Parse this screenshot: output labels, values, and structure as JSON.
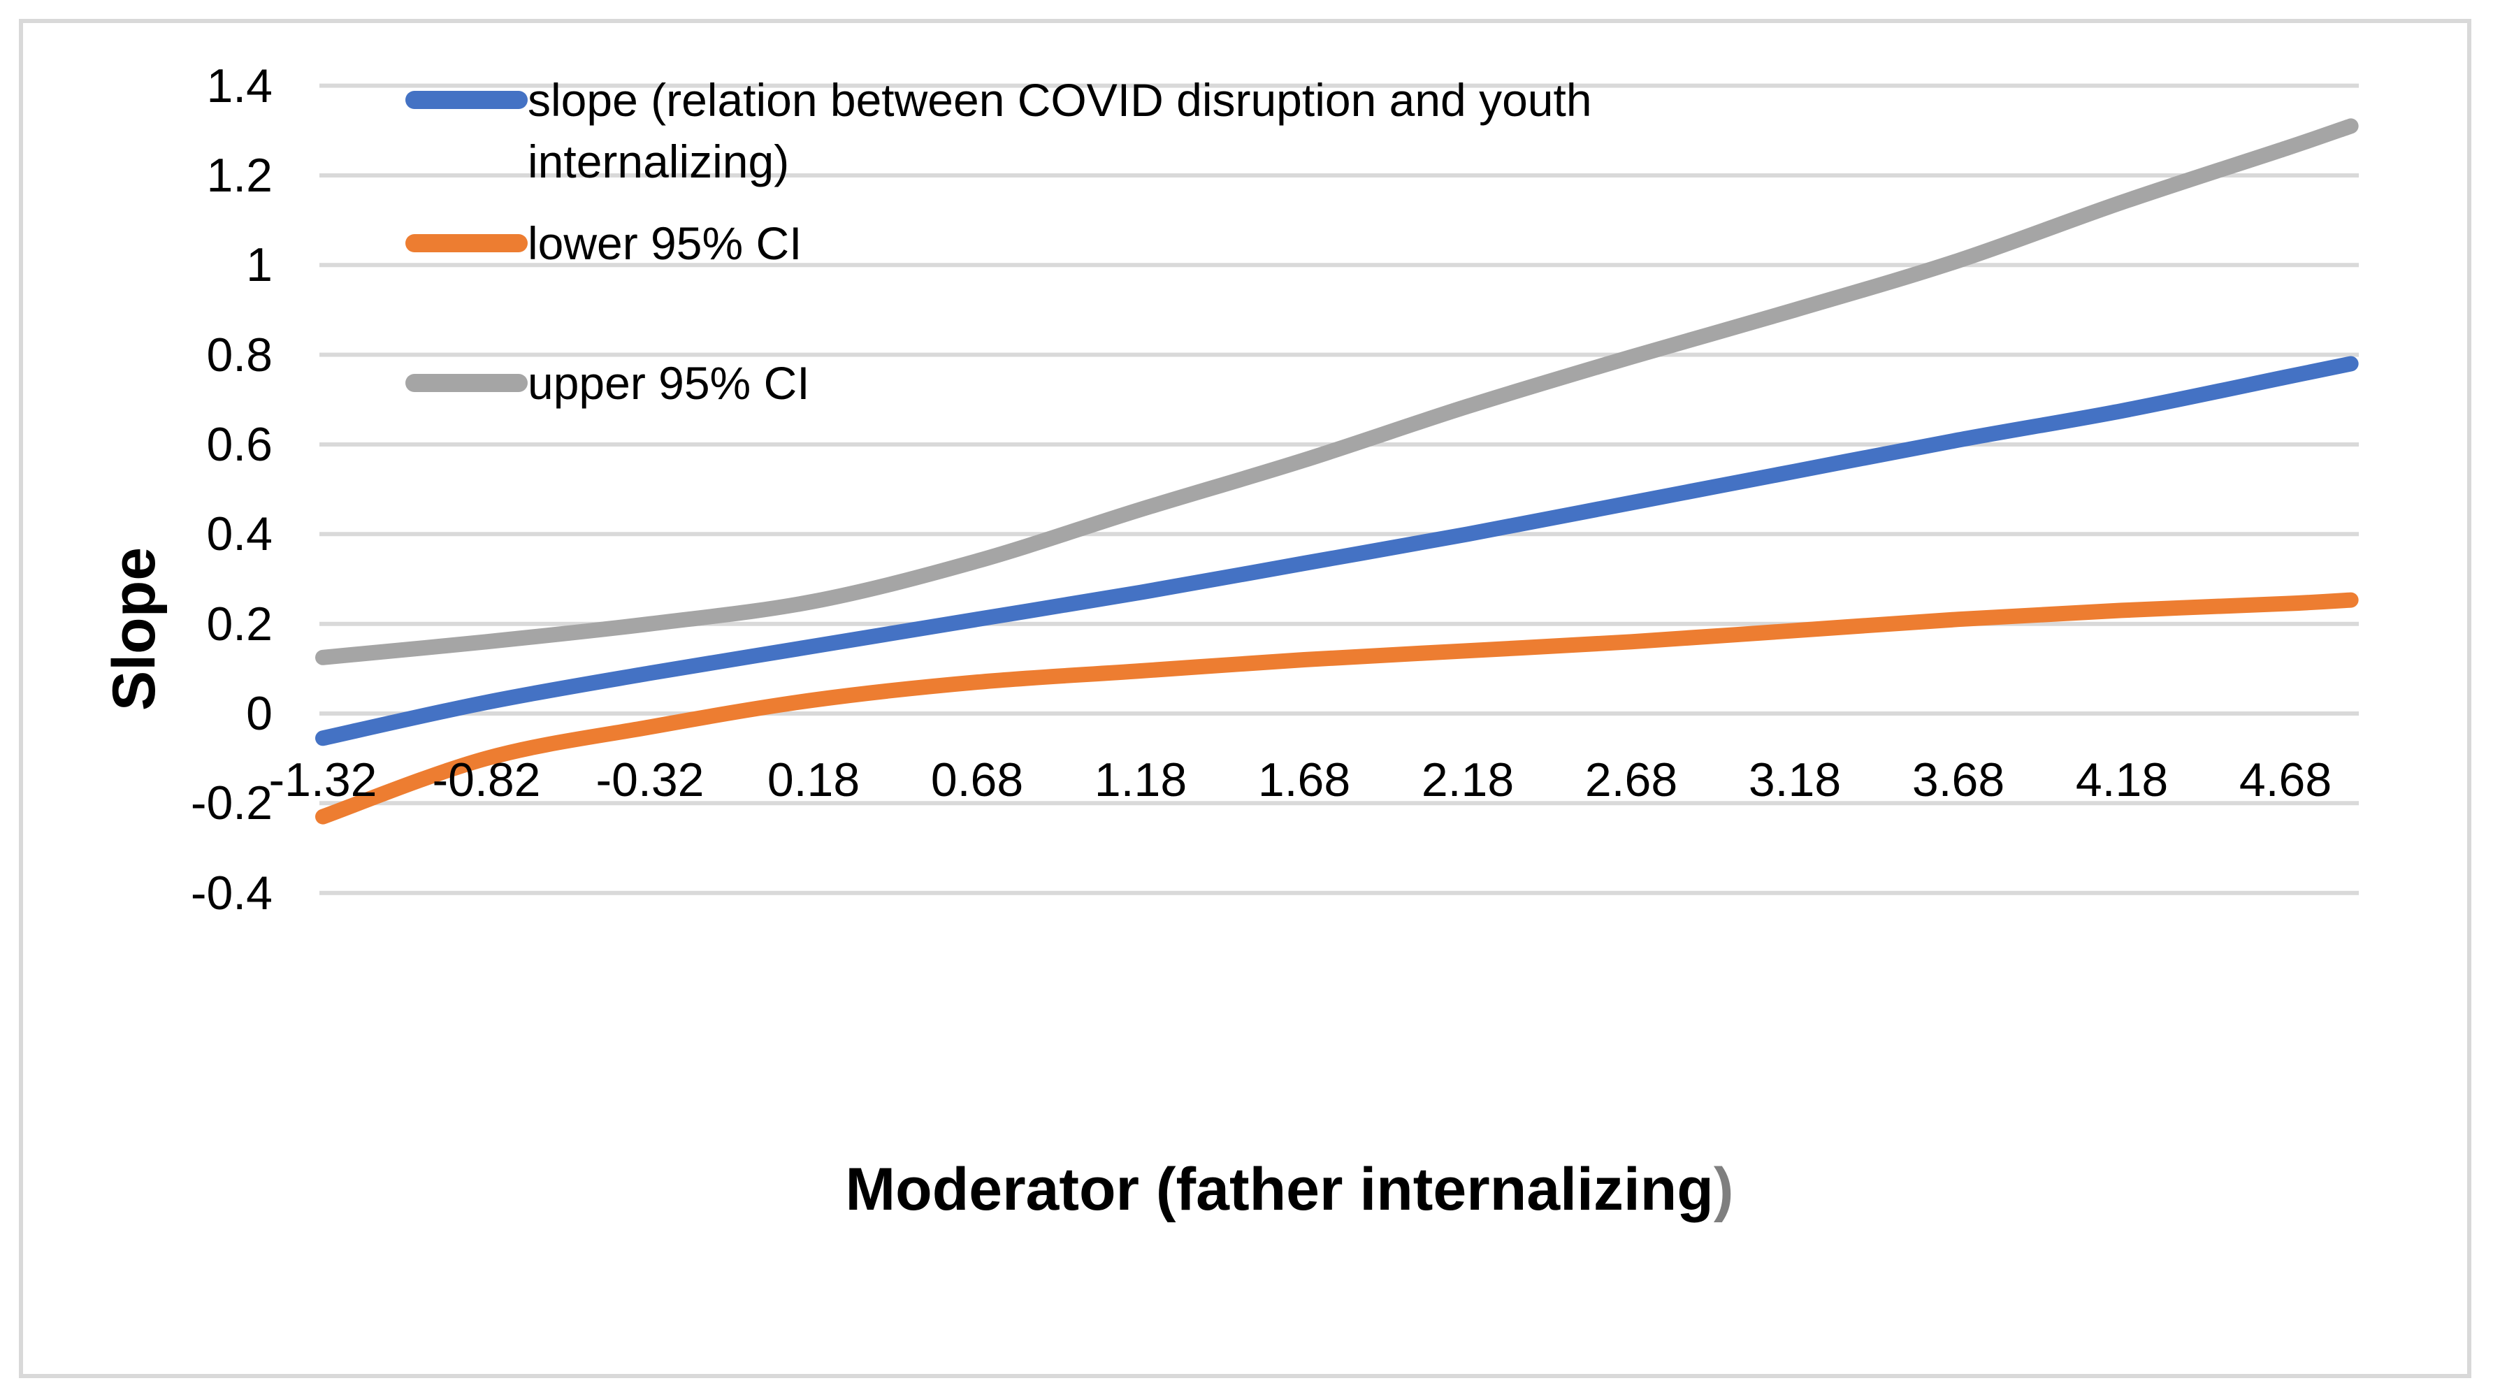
{
  "colors": {
    "series_slope": "#4472C4",
    "series_lower": "#ED7D31",
    "series_upper": "#A5A5A5",
    "gridline": "#D9D9D9",
    "chart_border": "#D9D9D9",
    "text": "#000000",
    "xlabel_paren": "#7f7f7f"
  },
  "chart_data": {
    "type": "line",
    "title": "",
    "ylabel": "Slope",
    "xlabel_main": "Moderator (father internalizing",
    "xlabel_suffix": ")",
    "legend_position": "top-left-overlay",
    "grid": "horizontal",
    "ylim": [
      -0.4,
      1.4
    ],
    "y_ticks": [
      1.4,
      1.2,
      1,
      0.8,
      0.6,
      0.4,
      0.2,
      0,
      -0.2,
      -0.4
    ],
    "y_tick_labels": [
      "1.4",
      "1.2",
      "1",
      "0.8",
      "0.6",
      "0.4",
      "0.2",
      "0",
      "-0.2",
      "-0.4"
    ],
    "x": [
      -1.32,
      -0.82,
      -0.32,
      0.18,
      0.68,
      1.18,
      1.68,
      2.18,
      2.68,
      3.18,
      3.68,
      4.18,
      4.68,
      4.88
    ],
    "x_tick_labels": [
      "-1.32",
      "-0.82",
      "-0.32",
      "0.18",
      "0.68",
      "1.18",
      "1.68",
      "2.18",
      "2.68",
      "3.18",
      "3.68",
      "4.18",
      "4.68"
    ],
    "series": [
      {
        "name": "slope (relation between COVID disruption and youth internalizing)",
        "color": "#4472C4",
        "values": [
          -0.055,
          0.025,
          0.09,
          0.15,
          0.21,
          0.27,
          0.335,
          0.4,
          0.47,
          0.54,
          0.61,
          0.675,
          0.75,
          0.78
        ]
      },
      {
        "name": "lower 95% CI",
        "color": "#ED7D31",
        "values": [
          -0.23,
          -0.1,
          -0.03,
          0.03,
          0.07,
          0.095,
          0.12,
          0.14,
          0.16,
          0.185,
          0.21,
          0.23,
          0.245,
          0.253
        ]
      },
      {
        "name": "upper 95% CI",
        "color": "#A5A5A5",
        "values": [
          0.125,
          0.16,
          0.2,
          0.25,
          0.34,
          0.455,
          0.565,
          0.685,
          0.795,
          0.9,
          1.01,
          1.14,
          1.26,
          1.31
        ]
      }
    ]
  }
}
